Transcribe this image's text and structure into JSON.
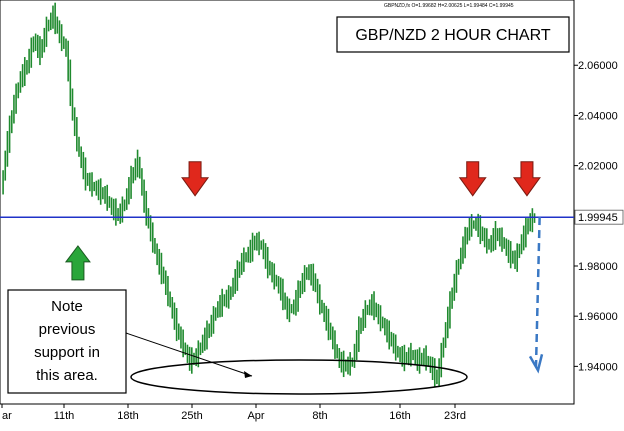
{
  "chart_data": {
    "type": "line",
    "title": "GBP/NZD 2 HOUR CHART",
    "info_line": "GBPNZD,fx O=1.99682 H=2.00625 L=1.99484 C=1.99945",
    "xlabel": "",
    "ylabel": "",
    "y_ticks": [
      "2.06000",
      "2.04000",
      "2.02000",
      "1.98000",
      "1.96000",
      "1.94000"
    ],
    "x_ticks": [
      "ar",
      "11th",
      "18th",
      "25th",
      "Apr",
      "8th",
      "16th",
      "23rd"
    ],
    "ylim": [
      1.925,
      2.086
    ],
    "current_price": 1.99945,
    "current_price_label": "1.99945",
    "support_level": 1.9994,
    "note_text": [
      "Note",
      "previous",
      "support in",
      "this area."
    ],
    "grid": false,
    "colors": {
      "candle": "#1f8a2e",
      "support_line": "#1f32c8",
      "down_arrow": "#e0281c",
      "up_arrow": "#29a63a",
      "forecast": "#3a78c4",
      "ellipse": "#000000"
    },
    "price_path": [
      [
        0,
        2.01
      ],
      [
        3,
        2.03
      ],
      [
        6,
        2.045
      ],
      [
        9,
        2.055
      ],
      [
        12,
        2.06
      ],
      [
        15,
        2.07
      ],
      [
        18,
        2.065
      ],
      [
        21,
        2.075
      ],
      [
        24,
        2.08
      ],
      [
        27,
        2.072
      ],
      [
        30,
        2.066
      ],
      [
        33,
        2.04
      ],
      [
        36,
        2.025
      ],
      [
        39,
        2.015
      ],
      [
        42,
        2.012
      ],
      [
        45,
        2.01
      ],
      [
        48,
        2.008
      ],
      [
        51,
        2.003
      ],
      [
        54,
        2.0
      ],
      [
        57,
        2.005
      ],
      [
        60,
        2.015
      ],
      [
        63,
        2.022
      ],
      [
        66,
        2.005
      ],
      [
        69,
        1.993
      ],
      [
        72,
        1.983
      ],
      [
        75,
        1.975
      ],
      [
        78,
        1.965
      ],
      [
        81,
        1.955
      ],
      [
        84,
        1.948
      ],
      [
        87,
        1.942
      ],
      [
        90,
        1.944
      ],
      [
        93,
        1.95
      ],
      [
        96,
        1.955
      ],
      [
        99,
        1.962
      ],
      [
        102,
        1.966
      ],
      [
        105,
        1.968
      ],
      [
        108,
        1.975
      ],
      [
        111,
        1.982
      ],
      [
        114,
        1.985
      ],
      [
        117,
        1.99
      ],
      [
        120,
        1.988
      ],
      [
        123,
        1.98
      ],
      [
        126,
        1.975
      ],
      [
        129,
        1.97
      ],
      [
        132,
        1.962
      ],
      [
        135,
        1.964
      ],
      [
        138,
        1.972
      ],
      [
        141,
        1.978
      ],
      [
        144,
        1.975
      ],
      [
        147,
        1.965
      ],
      [
        150,
        1.958
      ],
      [
        153,
        1.95
      ],
      [
        156,
        1.942
      ],
      [
        159,
        1.94
      ],
      [
        162,
        1.942
      ],
      [
        165,
        1.955
      ],
      [
        168,
        1.962
      ],
      [
        171,
        1.965
      ],
      [
        174,
        1.96
      ],
      [
        177,
        1.955
      ],
      [
        180,
        1.95
      ],
      [
        183,
        1.945
      ],
      [
        186,
        1.943
      ],
      [
        189,
        1.945
      ],
      [
        192,
        1.942
      ],
      [
        195,
        1.944
      ],
      [
        198,
        1.94
      ],
      [
        201,
        1.935
      ],
      [
        204,
        1.95
      ],
      [
        207,
        1.965
      ],
      [
        210,
        1.978
      ],
      [
        213,
        1.988
      ],
      [
        216,
        1.996
      ],
      [
        219,
        1.997
      ],
      [
        222,
        1.992
      ],
      [
        225,
        1.988
      ],
      [
        228,
        1.993
      ],
      [
        231,
        1.99
      ],
      [
        234,
        1.985
      ],
      [
        237,
        1.982
      ],
      [
        240,
        1.99
      ],
      [
        243,
        1.997
      ],
      [
        246,
        1.9995
      ]
    ],
    "down_arrows": [
      {
        "x": 89,
        "y": 2.008
      },
      {
        "x": 217,
        "y": 2.008
      },
      {
        "x": 242,
        "y": 2.008
      }
    ],
    "up_arrows": [
      {
        "x": 35,
        "y": 1.988
      }
    ],
    "forecast_path": [
      [
        246,
        1.9995
      ],
      [
        260,
        1.94
      ]
    ]
  }
}
